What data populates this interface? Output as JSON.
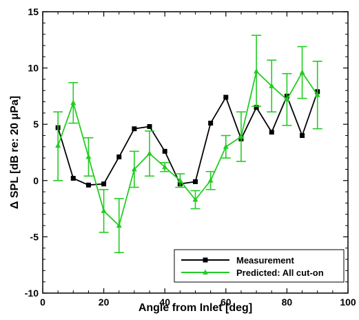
{
  "chart_data": {
    "type": "line",
    "xlabel": "Angle from Inlet [deg]",
    "ylabel": "Δ SPL [dB re: 20 μPa]",
    "xlim": [
      0,
      100
    ],
    "ylim": [
      -10,
      15
    ],
    "xticks": [
      0,
      20,
      40,
      60,
      80,
      100
    ],
    "yticks": [
      -10,
      -5,
      0,
      5,
      10,
      15
    ],
    "grid": false,
    "legend_position": "bottom-right",
    "series": [
      {
        "name": "Measurement",
        "color": "#000000",
        "marker": "square",
        "x": [
          5,
          10,
          15,
          20,
          25,
          30,
          35,
          40,
          45,
          50,
          55,
          60,
          65,
          70,
          75,
          80,
          85,
          90
        ],
        "y": [
          4.7,
          0.2,
          -0.4,
          -0.3,
          2.1,
          4.6,
          4.8,
          2.6,
          -0.3,
          -0.1,
          5.1,
          7.4,
          3.7,
          6.5,
          4.3,
          7.5,
          4.0,
          7.9
        ]
      },
      {
        "name": "Predicted: All cut-on",
        "color": "#22cc22",
        "marker": "triangle",
        "x": [
          5,
          10,
          15,
          20,
          25,
          30,
          35,
          40,
          45,
          50,
          55,
          60,
          65,
          70,
          75,
          80,
          85,
          90
        ],
        "y": [
          3.1,
          6.9,
          2.1,
          -2.7,
          -4.0,
          1.0,
          2.4,
          1.2,
          0.0,
          -1.7,
          0.0,
          3.0,
          3.9,
          9.7,
          8.4,
          7.2,
          9.6,
          7.6
        ],
        "err_low": [
          3.1,
          1.8,
          1.7,
          1.9,
          2.4,
          1.6,
          2.0,
          0.4,
          0.6,
          0.8,
          0.8,
          1.0,
          2.2,
          3.1,
          2.3,
          2.3,
          2.3,
          3.0
        ],
        "err_high": [
          3.0,
          1.8,
          1.7,
          1.9,
          2.4,
          1.6,
          2.0,
          0.4,
          0.6,
          0.8,
          0.8,
          1.0,
          2.2,
          3.2,
          2.3,
          2.3,
          2.3,
          3.0
        ]
      }
    ]
  }
}
